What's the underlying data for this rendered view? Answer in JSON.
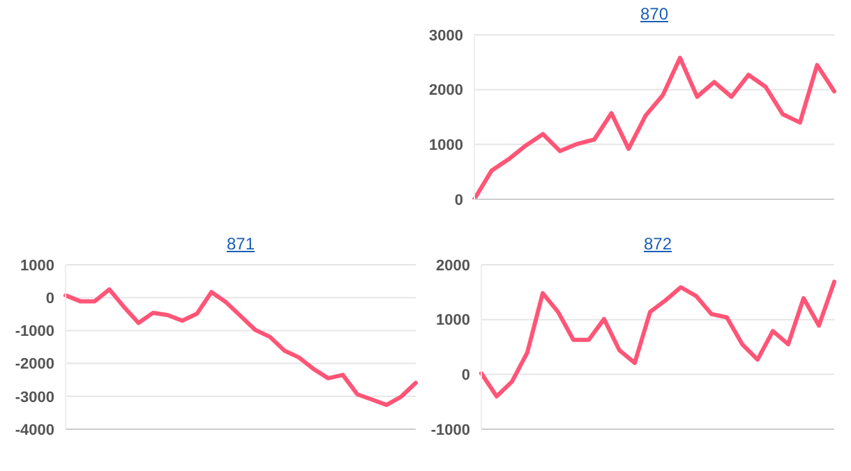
{
  "chart_data": [
    {
      "type": "line",
      "title": "870",
      "categories": [
        null,
        null,
        null,
        null,
        null,
        null,
        null,
        null,
        null,
        null,
        null,
        null,
        null,
        null,
        null,
        null,
        null,
        null,
        null,
        null,
        null,
        null
      ],
      "series": [
        {
          "color": "#ff5577",
          "values": [
            0,
            520,
            730,
            980,
            1190,
            880,
            1010,
            1090,
            1570,
            920,
            1530,
            1900,
            2580,
            1870,
            2140,
            1870,
            2270,
            2050,
            1550,
            1400,
            2450,
            1970
          ]
        }
      ],
      "ylim": [
        0,
        3000
      ],
      "yticks": [
        0,
        1000,
        2000,
        3000
      ],
      "grid": "y",
      "marker": "none",
      "line_style": "solid",
      "tick_labels": "y"
    },
    {
      "type": "line",
      "title": "871",
      "categories": [
        null,
        null,
        null,
        null,
        null,
        null,
        null,
        null,
        null,
        null,
        null,
        null,
        null,
        null,
        null,
        null,
        null,
        null,
        null,
        null,
        null,
        null,
        null,
        null,
        null
      ],
      "series": [
        {
          "color": "#ff5577",
          "values": [
            70,
            -110,
            -110,
            250,
            -280,
            -770,
            -460,
            -530,
            -700,
            -490,
            170,
            -140,
            -560,
            -980,
            -1190,
            -1610,
            -1820,
            -2170,
            -2450,
            -2350,
            -2940,
            -3100,
            -3260,
            -3010,
            -2590
          ]
        }
      ],
      "ylim": [
        -4000,
        1000
      ],
      "yticks": [
        -4000,
        -3000,
        -2000,
        -1000,
        0,
        1000
      ],
      "grid": "y",
      "marker": "none",
      "line_style": "solid",
      "tick_labels": "y"
    },
    {
      "type": "line",
      "title": "872",
      "categories": [
        null,
        null,
        null,
        null,
        null,
        null,
        null,
        null,
        null,
        null,
        null,
        null,
        null,
        null,
        null,
        null,
        null,
        null,
        null,
        null,
        null,
        null,
        null,
        null
      ],
      "series": [
        {
          "color": "#ff5577",
          "values": [
            20,
            -400,
            -130,
            400,
            1480,
            1140,
            630,
            630,
            1010,
            440,
            210,
            1140,
            1350,
            1590,
            1430,
            1100,
            1040,
            550,
            270,
            790,
            550,
            1390,
            890,
            1690
          ]
        }
      ],
      "ylim": [
        -1000,
        2000
      ],
      "yticks": [
        -1000,
        0,
        1000,
        2000
      ],
      "grid": "y",
      "marker": "none",
      "line_style": "solid",
      "tick_labels": "y"
    }
  ]
}
